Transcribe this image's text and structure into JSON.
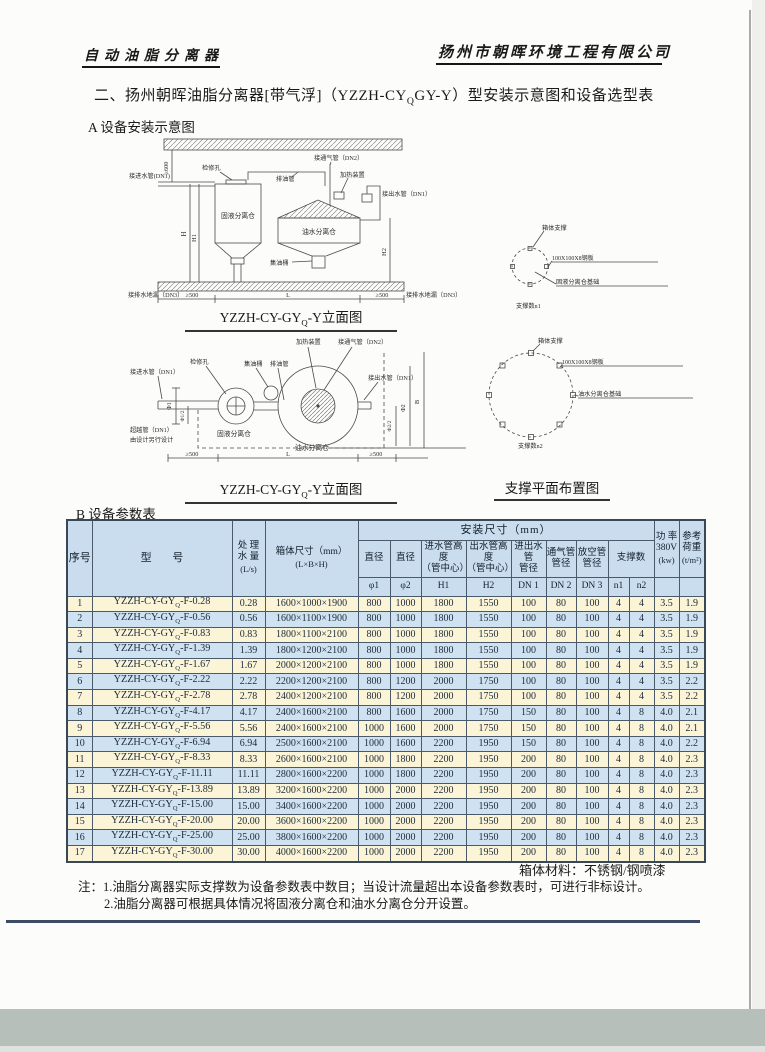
{
  "page_header": {
    "product": "自动油脂分离器",
    "company": "扬州市朝晖环境工程有限公司"
  },
  "title": "二、扬州朝晖油脂分离器[带气浮]（YZZH-CYQGY-Y）型安装示意图和设备选型表",
  "section_a_heading": "A 设备安装示意图",
  "section_b_heading": "B 设备参数表",
  "colors": {
    "header_bg": "#c9ddee",
    "row_odd": "#fbf4d7",
    "row_even": "#cfe2f1",
    "rule_navy": "#3d4b66"
  },
  "diagram_elevation": {
    "caption": "YZZH-CY-GYQ-Y立面图",
    "labels": {
      "dim600": "≥600",
      "inlet": "接进水管(DN1)",
      "access": "检修孔",
      "oil_pipe": "排油管",
      "vent": "接通气管（DN2）",
      "heater": "加热装置",
      "outlet": "接出水管（DN1）",
      "tank_solid": "固液分离仓",
      "tank_oil": "油水分离仓",
      "barrel": "集油桶",
      "h": "H",
      "h1": "H1",
      "h2": "H2",
      "drain_left": "接排水地漏（DN3）",
      "drain_right": "接排水地漏（DN3）",
      "m500l": "≥500",
      "len": "L",
      "m500r": "≥500"
    }
  },
  "diagram_plan": {
    "caption": "YZZH-CY-GYQ-Y立面图",
    "labels": {
      "inlet": "接进水管（DN1）",
      "access": "检修孔",
      "barrel": "集油桶",
      "oil_pipe": "排油管",
      "heater": "加热装置",
      "vent": "接通气管（DN2）",
      "outlet": "接出水管（DN1）",
      "phi1": "Φ1",
      "phi1h": "Φ1/2",
      "bypass1": "超越管（DN1）",
      "bypass2": "由设计另行设计",
      "tank_solid": "固液分离仓",
      "tank_oil": "油水分离仓",
      "phi2h": "Φ2/2",
      "phi2": "Φ2",
      "b": "B",
      "m500l": "≥500",
      "len": "L",
      "m500r": "≥500"
    }
  },
  "diagram_support": {
    "caption": "支撑平面布置图",
    "top": {
      "support": "箱体支撑",
      "plate": "100X100X8钢板",
      "base": "固液分离仓基础",
      "count": "支撑数n1"
    },
    "bottom": {
      "support": "箱体支撑",
      "plate": "100X100X8钢板",
      "base": "油水分离仓基础",
      "count": "支撑数n2"
    }
  },
  "table": {
    "header": {
      "no": "序号",
      "model": "型 号",
      "flow": [
        "处 理",
        "水 量",
        "(L/s)"
      ],
      "box": [
        "箱体尺寸（mm）",
        "(L×B×H)"
      ],
      "install_group": "安装尺寸（mm）",
      "d1": "直径",
      "d2": "直径",
      "h1": [
        "进水管高度",
        "（管中心）"
      ],
      "h2": [
        "出水管高度",
        "（管中心）"
      ],
      "dn1": [
        "进出水管",
        "管径"
      ],
      "dn2": [
        "通气管",
        "管径"
      ],
      "dn3": [
        "放空管",
        "管径"
      ],
      "support": "支撑数",
      "sub": {
        "phi1": "φ1",
        "phi2": "φ2",
        "H1": "H1",
        "H2": "H2",
        "DN1": "DN 1",
        "DN2": "DN 2",
        "DN3": "DN 3",
        "n1": "n1",
        "n2": "n2"
      },
      "power": [
        "功 率",
        "380V",
        "(kw)"
      ],
      "load": [
        "参考",
        "荷重",
        "(t/m²)"
      ]
    },
    "rows": [
      [
        "1",
        "YZZH-CY-GYQ-F-0.28",
        "0.28",
        "1600×1000×1900",
        "800",
        "1000",
        "1800",
        "1550",
        "100",
        "80",
        "100",
        "4",
        "4",
        "3.5",
        "1.9"
      ],
      [
        "2",
        "YZZH-CY-GYQ-F-0.56",
        "0.56",
        "1600×1100×1900",
        "800",
        "1000",
        "1800",
        "1550",
        "100",
        "80",
        "100",
        "4",
        "4",
        "3.5",
        "1.9"
      ],
      [
        "3",
        "YZZH-CY-GYQ-F-0.83",
        "0.83",
        "1800×1100×2100",
        "800",
        "1000",
        "1800",
        "1550",
        "100",
        "80",
        "100",
        "4",
        "4",
        "3.5",
        "1.9"
      ],
      [
        "4",
        "YZZH-CY-GYQ-F-1.39",
        "1.39",
        "1800×1200×2100",
        "800",
        "1000",
        "1800",
        "1550",
        "100",
        "80",
        "100",
        "4",
        "4",
        "3.5",
        "1.9"
      ],
      [
        "5",
        "YZZH-CY-GYQ-F-1.67",
        "1.67",
        "2000×1200×2100",
        "800",
        "1000",
        "1800",
        "1550",
        "100",
        "80",
        "100",
        "4",
        "4",
        "3.5",
        "1.9"
      ],
      [
        "6",
        "YZZH-CY-GYQ-F-2.22",
        "2.22",
        "2200×1200×2100",
        "800",
        "1200",
        "2000",
        "1750",
        "100",
        "80",
        "100",
        "4",
        "4",
        "3.5",
        "2.2"
      ],
      [
        "7",
        "YZZH-CY-GYQ-F-2.78",
        "2.78",
        "2400×1200×2100",
        "800",
        "1200",
        "2000",
        "1750",
        "100",
        "80",
        "100",
        "4",
        "4",
        "3.5",
        "2.2"
      ],
      [
        "8",
        "YZZH-CY-GYQ-F-4.17",
        "4.17",
        "2400×1600×2100",
        "800",
        "1600",
        "2000",
        "1750",
        "150",
        "80",
        "100",
        "4",
        "8",
        "4.0",
        "2.1"
      ],
      [
        "9",
        "YZZH-CY-GYQ-F-5.56",
        "5.56",
        "2400×1600×2100",
        "1000",
        "1600",
        "2000",
        "1750",
        "150",
        "80",
        "100",
        "4",
        "8",
        "4.0",
        "2.1"
      ],
      [
        "10",
        "YZZH-CY-GYQ-F-6.94",
        "6.94",
        "2500×1600×2100",
        "1000",
        "1600",
        "2200",
        "1950",
        "150",
        "80",
        "100",
        "4",
        "8",
        "4.0",
        "2.2"
      ],
      [
        "11",
        "YZZH-CY-GYQ-F-8.33",
        "8.33",
        "2600×1600×2100",
        "1000",
        "1800",
        "2200",
        "1950",
        "200",
        "80",
        "100",
        "4",
        "8",
        "4.0",
        "2.3"
      ],
      [
        "12",
        "YZZH-CY-GYQ-F-11.11",
        "11.11",
        "2800×1600×2200",
        "1000",
        "1800",
        "2200",
        "1950",
        "200",
        "80",
        "100",
        "4",
        "8",
        "4.0",
        "2.3"
      ],
      [
        "13",
        "YZZH-CY-GYQ-F-13.89",
        "13.89",
        "3200×1600×2200",
        "1000",
        "2000",
        "2200",
        "1950",
        "200",
        "80",
        "100",
        "4",
        "8",
        "4.0",
        "2.3"
      ],
      [
        "14",
        "YZZH-CY-GYQ-F-15.00",
        "15.00",
        "3400×1600×2200",
        "1000",
        "2000",
        "2200",
        "1950",
        "200",
        "80",
        "100",
        "4",
        "8",
        "4.0",
        "2.3"
      ],
      [
        "15",
        "YZZH-CY-GYQ-F-20.00",
        "20.00",
        "3600×1600×2200",
        "1000",
        "2000",
        "2200",
        "1950",
        "200",
        "80",
        "100",
        "4",
        "8",
        "4.0",
        "2.3"
      ],
      [
        "16",
        "YZZH-CY-GYQ-F-25.00",
        "25.00",
        "3800×1600×2200",
        "1000",
        "2000",
        "2200",
        "1950",
        "200",
        "80",
        "100",
        "4",
        "8",
        "4.0",
        "2.3"
      ],
      [
        "17",
        "YZZH-CY-GYQ-F-30.00",
        "30.00",
        "4000×1600×2200",
        "1000",
        "2000",
        "2200",
        "1950",
        "200",
        "80",
        "100",
        "4",
        "8",
        "4.0",
        "2.3"
      ]
    ]
  },
  "material_note": "箱体材料：不锈钢/钢喷漆",
  "notes": [
    "注：1.油脂分离器实际支撑数为设备参数表中数目；当设计流量超出本设备参数表时，可进行非标设计。",
    "2.油脂分离器可根据具体情况将固液分离仓和油水分离仓分开设置。"
  ]
}
